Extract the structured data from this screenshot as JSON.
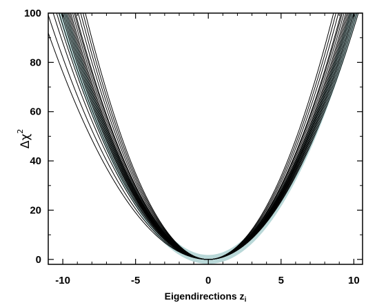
{
  "chart_data": {
    "type": "line",
    "title": "",
    "xlabel": "Eigendirections z",
    "xlabel_sub": "i",
    "ylabel": "Δχ",
    "ylabel_sup": "2",
    "xlim": [
      -11,
      10.6
    ],
    "ylim": [
      -2,
      100
    ],
    "xticks": [
      -10,
      -5,
      0,
      5,
      10
    ],
    "yticks": [
      0,
      20,
      40,
      60,
      80,
      100
    ],
    "grid": false,
    "reference_band": {
      "equation": "y = x^2",
      "color": "#b9d8d8"
    },
    "series": [
      {
        "a_left": 0.76,
        "a_right": 1.0
      },
      {
        "a_left": 0.82,
        "a_right": 1.02
      },
      {
        "a_left": 0.88,
        "a_right": 0.96
      },
      {
        "a_left": 0.92,
        "a_right": 1.04
      },
      {
        "a_left": 0.95,
        "a_right": 0.98
      },
      {
        "a_left": 0.98,
        "a_right": 1.06
      },
      {
        "a_left": 1.0,
        "a_right": 1.0
      },
      {
        "a_left": 1.02,
        "a_right": 1.1
      },
      {
        "a_left": 1.04,
        "a_right": 0.94
      },
      {
        "a_left": 1.06,
        "a_right": 1.08
      },
      {
        "a_left": 1.08,
        "a_right": 1.15
      },
      {
        "a_left": 1.1,
        "a_right": 1.2
      },
      {
        "a_left": 1.12,
        "a_right": 1.25
      },
      {
        "a_left": 1.15,
        "a_right": 1.04
      },
      {
        "a_left": 1.18,
        "a_right": 1.12
      },
      {
        "a_left": 1.2,
        "a_right": 1.3
      },
      {
        "a_left": 1.25,
        "a_right": 1.0
      },
      {
        "a_left": 1.3,
        "a_right": 1.18
      },
      {
        "a_left": 1.35,
        "a_right": 1.06
      },
      {
        "a_left": 1.4,
        "a_right": 1.35
      }
    ],
    "colors": {
      "line": "#000000",
      "band": "#b9d8d8",
      "axis": "#000000"
    }
  }
}
